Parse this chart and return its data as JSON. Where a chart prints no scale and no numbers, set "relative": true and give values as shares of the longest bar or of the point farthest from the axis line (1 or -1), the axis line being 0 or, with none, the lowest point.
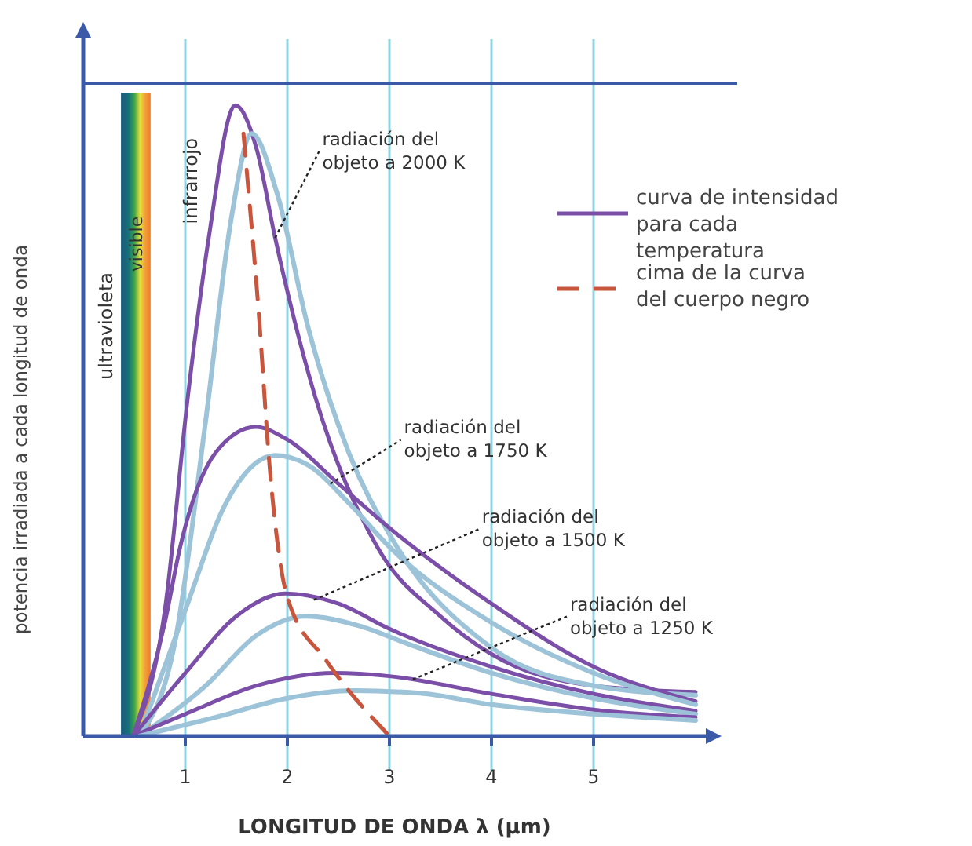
{
  "chart_data": {
    "type": "line",
    "relative": true,
    "xlabel": "LONGITUD DE ONDA λ (μm)",
    "ylabel": "potencia irradiada a cada longitud de onda",
    "xlim": [
      0,
      6.1
    ],
    "xticks": [
      1,
      2,
      3,
      4,
      5
    ],
    "grid": true,
    "legend": "right",
    "series": [
      {
        "name": "curva de intensidad para cada temperatura",
        "color": "#7b4fa8",
        "x": [
          0.49,
          0.8,
          1.03,
          1.23,
          1.49,
          1.7,
          1.88,
          2.26,
          2.88,
          3.5,
          4,
          5,
          6
        ],
        "values": [
          0,
          0.2,
          0.545,
          0.79,
          1.0,
          0.93,
          0.79,
          0.545,
          0.3,
          0.19,
          0.13,
          0.08,
          0.07
        ]
      },
      {
        "color": "#9cc3d8",
        "x": [
          0.55,
          0.9,
          1.2,
          1.45,
          1.65,
          1.9,
          2.2,
          2.6,
          3,
          4,
          5,
          6
        ],
        "values": [
          0,
          0.15,
          0.5,
          0.82,
          0.955,
          0.86,
          0.65,
          0.45,
          0.32,
          0.14,
          0.08,
          0.065
        ]
      },
      {
        "color": "#7b4fa8",
        "x": [
          0.49,
          0.8,
          0.95,
          1.3,
          1.69,
          2.0,
          2.5,
          3,
          4,
          5,
          6
        ],
        "values": [
          0,
          0.18,
          0.3,
          0.45,
          0.49,
          0.47,
          0.4,
          0.33,
          0.21,
          0.11,
          0.055
        ]
      },
      {
        "color": "#9cc3d8",
        "x": [
          0.55,
          1.0,
          1.4,
          1.88,
          2.2,
          2.6,
          3,
          4,
          5,
          6
        ],
        "values": [
          0,
          0.2,
          0.37,
          0.445,
          0.43,
          0.37,
          0.3,
          0.18,
          0.1,
          0.05
        ]
      },
      {
        "color": "#7b4fa8",
        "x": [
          0.49,
          1.0,
          1.5,
          1.98,
          2.5,
          3,
          4,
          5,
          6
        ],
        "values": [
          0,
          0.1,
          0.19,
          0.226,
          0.21,
          0.17,
          0.11,
          0.067,
          0.04
        ]
      },
      {
        "color": "#9cc3d8",
        "x": [
          0.55,
          1.2,
          1.7,
          2.18,
          2.7,
          3.2,
          4,
          5,
          6
        ],
        "values": [
          0,
          0.08,
          0.16,
          0.19,
          0.175,
          0.145,
          0.1,
          0.06,
          0.035
        ]
      },
      {
        "color": "#7b4fa8",
        "x": [
          0.49,
          1.0,
          1.7,
          2.46,
          3,
          4,
          5,
          6
        ],
        "values": [
          0,
          0.035,
          0.08,
          0.1,
          0.095,
          0.067,
          0.042,
          0.03
        ]
      },
      {
        "color": "#9cc3d8",
        "x": [
          0.55,
          1.3,
          2,
          2.65,
          3.3,
          4,
          5,
          6
        ],
        "values": [
          0,
          0.03,
          0.06,
          0.072,
          0.068,
          0.05,
          0.035,
          0.025
        ]
      },
      {
        "name": "cima de la curva del cuerpo negro",
        "color": "#c8553d",
        "line_style": "dashed",
        "x": [
          1.57,
          1.6,
          1.72,
          1.83,
          2.0,
          2.38,
          3.0
        ],
        "values": [
          0.955,
          0.9,
          0.67,
          0.42,
          0.22,
          0.12,
          0
        ]
      }
    ],
    "bands": [
      {
        "axis": "x",
        "from": 0.37,
        "to": 0.66,
        "label": "visible"
      }
    ],
    "annotations": [
      {
        "text": "radiación del objeto a 2000 K",
        "x": 1.88,
        "y": 0.79
      },
      {
        "text": "radiación del objeto a 1750 K",
        "x": 2.42,
        "y": 0.4
      },
      {
        "text": "radiación del objeto a 1500 K",
        "x": 2.26,
        "y": 0.216
      },
      {
        "text": "radiación del objeto a 1250 K",
        "x": 3.23,
        "y": 0.09
      },
      "ultravioleta",
      "infrarrojo"
    ]
  }
}
